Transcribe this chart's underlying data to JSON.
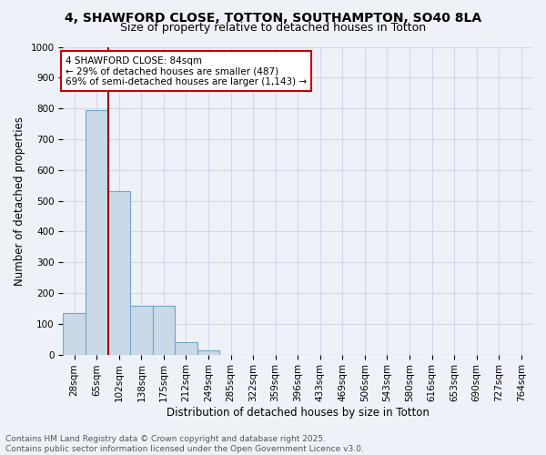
{
  "title_line1": "4, SHAWFORD CLOSE, TOTTON, SOUTHAMPTON, SO40 8LA",
  "title_line2": "Size of property relative to detached houses in Totton",
  "xlabel": "Distribution of detached houses by size in Totton",
  "ylabel": "Number of detached properties",
  "bins": [
    "28sqm",
    "65sqm",
    "102sqm",
    "138sqm",
    "175sqm",
    "212sqm",
    "249sqm",
    "285sqm",
    "322sqm",
    "359sqm",
    "396sqm",
    "433sqm",
    "469sqm",
    "506sqm",
    "543sqm",
    "580sqm",
    "616sqm",
    "653sqm",
    "690sqm",
    "727sqm",
    "764sqm"
  ],
  "bar_heights": [
    135,
    795,
    530,
    160,
    160,
    40,
    15,
    0,
    0,
    0,
    0,
    0,
    0,
    0,
    0,
    0,
    0,
    0,
    0,
    0,
    0
  ],
  "bar_color": "#c9d9e8",
  "bar_edge_color": "#6fa8cc",
  "grid_color": "#d0d8e8",
  "background_color": "#eef2f8",
  "red_line_x": 1.52,
  "annotation_line1": "4 SHAWFORD CLOSE: 84sqm",
  "annotation_line2": "← 29% of detached houses are smaller (487)",
  "annotation_line3": "69% of semi-detached houses are larger (1,143) →",
  "annotation_box_color": "#ffffff",
  "annotation_border_color": "#cc0000",
  "ylim": [
    0,
    1000
  ],
  "yticks": [
    0,
    100,
    200,
    300,
    400,
    500,
    600,
    700,
    800,
    900,
    1000
  ],
  "footer_line1": "Contains HM Land Registry data © Crown copyright and database right 2025.",
  "footer_line2": "Contains public sector information licensed under the Open Government Licence v3.0.",
  "title_fontsize": 10,
  "subtitle_fontsize": 9,
  "axis_label_fontsize": 8.5,
  "tick_fontsize": 7.5,
  "annotation_fontsize": 7.5,
  "footer_fontsize": 6.5
}
